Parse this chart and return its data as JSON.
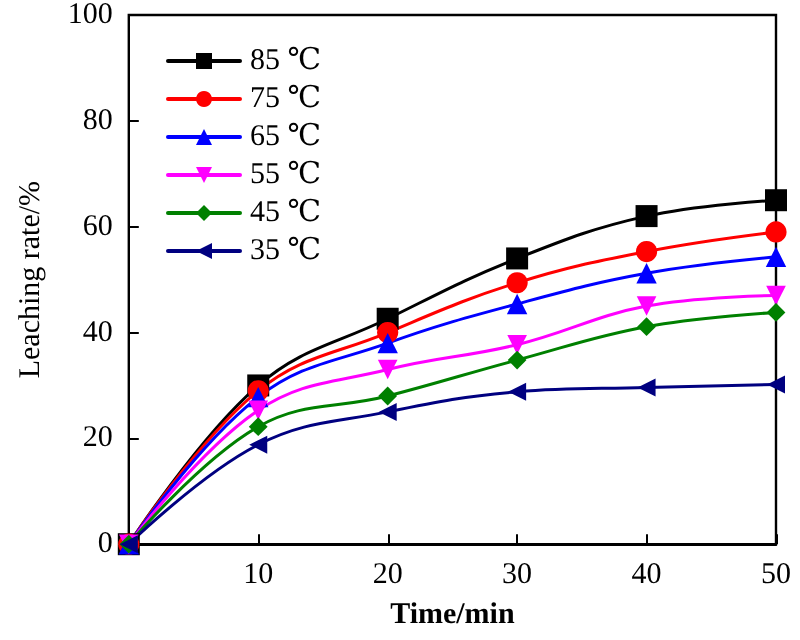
{
  "chart_data": {
    "type": "line",
    "xlabel": "Time/min",
    "ylabel": "Leaching rate/%",
    "x": [
      0,
      10,
      20,
      30,
      40,
      50
    ],
    "series": [
      {
        "name": "85 ℃",
        "color": "#000000",
        "marker": "square",
        "values": [
          0,
          30,
          42.6,
          54,
          62,
          65
        ]
      },
      {
        "name": "75 ℃",
        "color": "#ff0000",
        "marker": "circle",
        "values": [
          0,
          29,
          40,
          49.4,
          55.3,
          59
        ]
      },
      {
        "name": "65 ℃",
        "color": "#0000ff",
        "marker": "triangle",
        "values": [
          0,
          27.8,
          38,
          45.4,
          51.2,
          54.3
        ]
      },
      {
        "name": "55 ℃",
        "color": "#ff00ff",
        "marker": "triangle-down",
        "values": [
          0,
          25.3,
          33,
          37.7,
          45,
          47
        ]
      },
      {
        "name": "45 ℃",
        "color": "#008000",
        "marker": "diamond",
        "values": [
          0,
          22.2,
          28,
          34.8,
          41.1,
          43.8
        ]
      },
      {
        "name": "35 ℃",
        "color": "#000080",
        "marker": "triangle-left",
        "values": [
          0,
          18.8,
          25,
          28.8,
          29.6,
          30.2
        ]
      }
    ],
    "xlim": [
      0,
      50
    ],
    "xticks": [
      10,
      20,
      30,
      40,
      50
    ],
    "ylim": [
      0,
      100
    ],
    "yticks": [
      0,
      20,
      40,
      60,
      80,
      100
    ],
    "grid": false,
    "legend": "top left",
    "line_style": "solid"
  }
}
